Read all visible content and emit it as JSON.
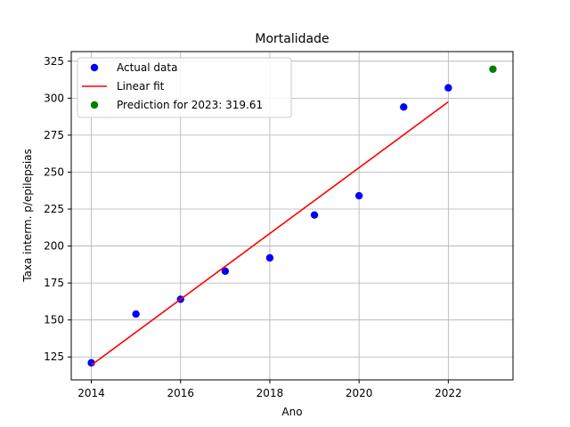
{
  "chart_data": {
    "type": "scatter",
    "title": "Mortalidade",
    "xlabel": "Ano",
    "ylabel": "Taxa interm. p/epilepsias",
    "xlim": [
      2013.55,
      2023.45
    ],
    "ylim": [
      109.5,
      331.5
    ],
    "x_ticks": [
      2014,
      2016,
      2018,
      2020,
      2022
    ],
    "y_ticks": [
      125,
      150,
      175,
      200,
      225,
      250,
      275,
      300,
      325
    ],
    "grid": true,
    "legend_position": "upper-left",
    "series": [
      {
        "name": "Actual data",
        "kind": "scatter",
        "color": "#0000ff",
        "x": [
          2014,
          2015,
          2016,
          2017,
          2018,
          2019,
          2020,
          2021,
          2022
        ],
        "y": [
          121,
          154,
          164,
          183,
          192,
          221,
          234,
          294,
          307
        ]
      },
      {
        "name": "Linear fit",
        "kind": "line",
        "color": "#ff0000",
        "x": [
          2014,
          2022
        ],
        "y": [
          119.5,
          297.5
        ]
      },
      {
        "name": "Prediction for 2023: 319.61",
        "kind": "scatter",
        "color": "#008000",
        "x": [
          2023
        ],
        "y": [
          319.61
        ]
      }
    ]
  }
}
